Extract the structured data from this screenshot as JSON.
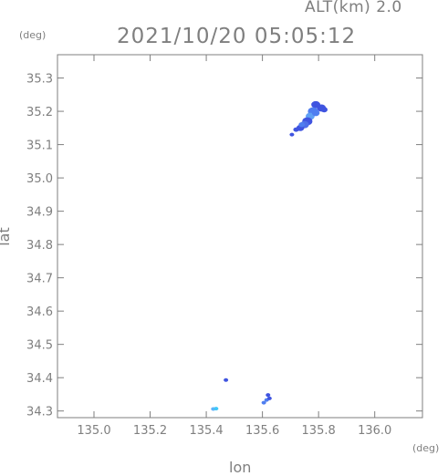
{
  "chart_data": {
    "type": "scatter",
    "header": "ALT(km) 2.0",
    "title": "2021/10/20 05:05:12",
    "xlabel": "lon",
    "ylabel": "lat",
    "x_unit": "(deg)",
    "y_unit": "(deg)",
    "xlim": [
      134.87,
      136.17
    ],
    "ylim": [
      34.28,
      35.37
    ],
    "xticks": [
      "135.0",
      "135.2",
      "135.4",
      "135.6",
      "135.8",
      "136.0"
    ],
    "yticks": [
      "34.3",
      "34.4",
      "34.5",
      "34.6",
      "34.7",
      "34.8",
      "34.9",
      "35.0",
      "35.1",
      "35.2",
      "35.3"
    ],
    "grid": false,
    "colors": {
      "axis": "#7f7f7f",
      "echo_dark": "#3f54e0",
      "echo_mid": "#4f7ef0",
      "echo_light": "#5fb2f8",
      "echo_cyan": "#40c8f8"
    },
    "echoes": [
      {
        "lon": 135.81,
        "lat": 35.21,
        "color": "#3f54e0",
        "r": 0.016
      },
      {
        "lon": 135.79,
        "lat": 35.22,
        "color": "#3f54e0",
        "r": 0.016
      },
      {
        "lon": 135.82,
        "lat": 35.205,
        "color": "#3f54e0",
        "r": 0.012
      },
      {
        "lon": 135.78,
        "lat": 35.2,
        "color": "#4f7ef0",
        "r": 0.018
      },
      {
        "lon": 135.77,
        "lat": 35.185,
        "color": "#5fa0f4",
        "r": 0.016
      },
      {
        "lon": 135.79,
        "lat": 35.195,
        "color": "#4f7ef0",
        "r": 0.014
      },
      {
        "lon": 135.76,
        "lat": 35.17,
        "color": "#3f54e0",
        "r": 0.018
      },
      {
        "lon": 135.75,
        "lat": 35.16,
        "color": "#4f6fe8",
        "r": 0.016
      },
      {
        "lon": 135.735,
        "lat": 35.15,
        "color": "#3f54e0",
        "r": 0.014
      },
      {
        "lon": 135.74,
        "lat": 35.16,
        "color": "#4f7ef0",
        "r": 0.011
      },
      {
        "lon": 135.72,
        "lat": 35.145,
        "color": "#3f54e0",
        "r": 0.01
      },
      {
        "lon": 135.705,
        "lat": 35.13,
        "color": "#3f54e0",
        "r": 0.006
      },
      {
        "lon": 135.47,
        "lat": 34.393,
        "color": "#3f54e0",
        "r": 0.007
      },
      {
        "lon": 135.62,
        "lat": 34.348,
        "color": "#3f54e0",
        "r": 0.007
      },
      {
        "lon": 135.615,
        "lat": 34.333,
        "color": "#4f7ef0",
        "r": 0.008
      },
      {
        "lon": 135.625,
        "lat": 34.338,
        "color": "#3f54e0",
        "r": 0.007
      },
      {
        "lon": 135.605,
        "lat": 34.325,
        "color": "#4f7ef0",
        "r": 0.006
      },
      {
        "lon": 135.425,
        "lat": 34.306,
        "color": "#5fb2f8",
        "r": 0.006
      },
      {
        "lon": 135.435,
        "lat": 34.307,
        "color": "#40c8f8",
        "r": 0.005
      }
    ]
  }
}
